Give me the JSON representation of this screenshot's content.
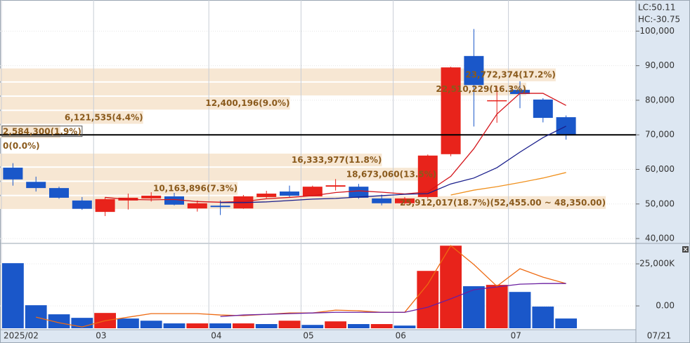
{
  "chart_data": [
    {
      "type": "candlestick",
      "categories": [
        "2025/02",
        null,
        null,
        null,
        "03",
        null,
        null,
        null,
        null,
        "04",
        null,
        null,
        null,
        "05",
        null,
        null,
        null,
        "06",
        null,
        null,
        null,
        null,
        "07",
        null,
        null
      ],
      "open": [
        60500,
        56400,
        54600,
        51000,
        47700,
        51000,
        51600,
        52200,
        48700,
        49500,
        48700,
        52000,
        53600,
        52200,
        55000,
        55000,
        51600,
        50200,
        52000,
        64400,
        92800,
        79800,
        83000,
        80200,
        75100
      ],
      "high": [
        61800,
        57900,
        55000,
        52000,
        52000,
        53000,
        53400,
        53200,
        51000,
        51000,
        52600,
        53800,
        55300,
        55300,
        57200,
        55800,
        52700,
        52000,
        64300,
        89700,
        100600,
        84000,
        85500,
        80600,
        75600
      ],
      "low": [
        55300,
        53600,
        51500,
        48300,
        46500,
        48400,
        50700,
        49600,
        47800,
        46800,
        48600,
        51700,
        52000,
        52200,
        53900,
        51500,
        49600,
        49800,
        51500,
        63800,
        72400,
        73500,
        77700,
        73600,
        68600
      ],
      "close": [
        57100,
        54600,
        51800,
        48600,
        51400,
        51800,
        52400,
        49800,
        50200,
        49100,
        52200,
        53000,
        52400,
        55000,
        55400,
        51800,
        50200,
        51600,
        64000,
        89500,
        84400,
        80000,
        81800,
        74900,
        70000
      ],
      "up_color": "#e8231b",
      "down_color": "#1a57c9",
      "ylim": [
        39000,
        109000
      ],
      "yticks": [
        {
          "value": 40000,
          "label": "40,000"
        },
        {
          "value": 50000,
          "label": "50,000"
        },
        {
          "value": 60000,
          "label": "60,000"
        },
        {
          "value": 70000,
          "label": "70,000"
        },
        {
          "value": 80000,
          "label": "80,000"
        },
        {
          "value": 90000,
          "label": "90,000"
        },
        {
          "value": 100000,
          "label": "100,000"
        }
      ],
      "grid": true,
      "reference_line": 70000,
      "ma_lines": [
        {
          "color": "#d4151b",
          "values": [
            null,
            null,
            null,
            null,
            51900,
            51300,
            51200,
            51300,
            50700,
            50500,
            50700,
            51500,
            51900,
            52400,
            53300,
            53800,
            53400,
            52900,
            53500,
            58000,
            66000,
            76000,
            82000,
            82000,
            78500
          ]
        },
        {
          "color": "#1a1f8c",
          "values": [
            null,
            null,
            null,
            null,
            null,
            null,
            null,
            null,
            null,
            50400,
            50400,
            50600,
            51000,
            51400,
            51600,
            52000,
            52400,
            52800,
            53000,
            55800,
            57500,
            60500,
            65000,
            69200,
            72500
          ]
        },
        {
          "color": "#f0911e",
          "values": [
            null,
            null,
            null,
            null,
            null,
            null,
            null,
            null,
            null,
            null,
            null,
            null,
            null,
            null,
            null,
            null,
            null,
            null,
            null,
            52600,
            54000,
            55000,
            56200,
            57500,
            59100
          ]
        }
      ],
      "indicators": [
        "LC:50.11",
        "HC:-30.75"
      ],
      "indicator_colors": [
        "#e8231b",
        "#1a57c9"
      ],
      "profile": {
        "bins": [
          48350,
          52455,
          56560,
          60665,
          64770,
          68875,
          72980,
          77085,
          81190,
          85295,
          89400
        ],
        "values": [
          25912017,
          10163896,
          18673060,
          16333977,
          0,
          2584300,
          6121535,
          12400196,
          22510229,
          23772374
        ],
        "value_labels": [
          "25,912,017(18.7%)",
          "10,163,896(7.3%)",
          "18,673,060(13.5%)",
          "16,333,977(11.8%)",
          "0(0.0%)",
          "2,584,300(1.9%)",
          "6,121,535(4.4%)",
          "12,400,196(9.0%)",
          "22,510,229(16.3%)",
          "23,772,374(17.2%)"
        ],
        "range_label": "(52,455.00 ~ 48,350.00)",
        "xlim": [
          0,
          26000000
        ],
        "color": "#f7e7d3"
      }
    },
    {
      "type": "bar",
      "values": [
        25400,
        400,
        -5000,
        -7100,
        -4200,
        -7500,
        -8800,
        -10400,
        -10400,
        -10400,
        -10400,
        -10800,
        -8800,
        -11300,
        -9200,
        -10800,
        -10800,
        -11700,
        20800,
        35800,
        11700,
        12500,
        8300,
        -400,
        -7500
      ],
      "colors": [
        "#1a57c9",
        "#1a57c9",
        "#1a57c9",
        "#1a57c9",
        "#e8231b",
        "#1a57c9",
        "#1a57c9",
        "#1a57c9",
        "#e8231b",
        "#1a57c9",
        "#e8231b",
        "#1a57c9",
        "#e8231b",
        "#1a57c9",
        "#e8231b",
        "#1a57c9",
        "#e8231b",
        "#1a57c9",
        "#e8231b",
        "#e8231b",
        "#1a57c9",
        "#e8231b",
        "#1a57c9",
        "#1a57c9",
        "#1a57c9"
      ],
      "ylim": [
        -13300,
        35900
      ],
      "yticks": [
        {
          "value": 0,
          "label": "0.00"
        },
        {
          "value": 25000,
          "label": "25,000K"
        }
      ],
      "ma_lines": [
        {
          "color": "#ee6a12",
          "values": [
            null,
            -6700,
            -10000,
            -12500,
            -8800,
            -6700,
            -4600,
            -4600,
            -4600,
            -5400,
            -5800,
            -5000,
            -4200,
            -4200,
            -2500,
            -2900,
            -3800,
            -3800,
            12900,
            35800,
            24600,
            11700,
            22100,
            17100,
            13300
          ]
        },
        {
          "color": "#6a1fa0",
          "values": [
            null,
            null,
            null,
            null,
            null,
            null,
            null,
            null,
            null,
            -6300,
            -5400,
            -5000,
            -4600,
            -4200,
            -3800,
            -3800,
            -3800,
            -3800,
            -800,
            4200,
            9600,
            11300,
            12900,
            13300,
            13300
          ]
        }
      ],
      "x_end_label": "07/21"
    }
  ]
}
